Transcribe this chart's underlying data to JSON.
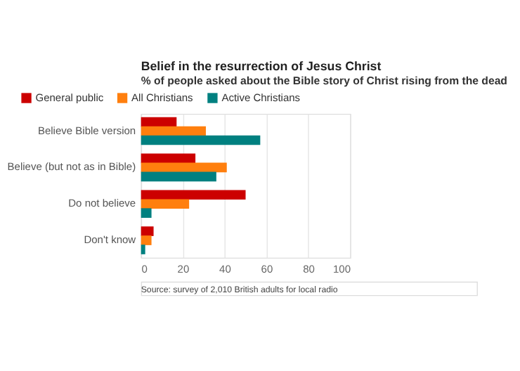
{
  "chart_data": {
    "type": "bar",
    "orientation": "horizontal",
    "title": "Belief in the resurrection of Jesus Christ",
    "subtitle": "% of people asked about the Bible story of Christ rising from the dead",
    "categories": [
      "Believe Bible version",
      "Believe (but not as in Bible)",
      "Do not believe",
      "Don't know"
    ],
    "series": [
      {
        "name": "General public",
        "color": "#cc0000",
        "values": [
          17,
          26,
          50,
          6
        ]
      },
      {
        "name": "All Christians",
        "color": "#ff7f0e",
        "values": [
          31,
          41,
          23,
          5
        ]
      },
      {
        "name": "Active Christians",
        "color": "#008080",
        "values": [
          57,
          36,
          5,
          2
        ]
      }
    ],
    "xlim": [
      0,
      100
    ],
    "xticks": [
      0,
      20,
      40,
      60,
      80,
      100
    ],
    "grid": "x",
    "legend": "top",
    "annotations": [
      "Source: survey of 2,010 British adults for local radio"
    ]
  }
}
